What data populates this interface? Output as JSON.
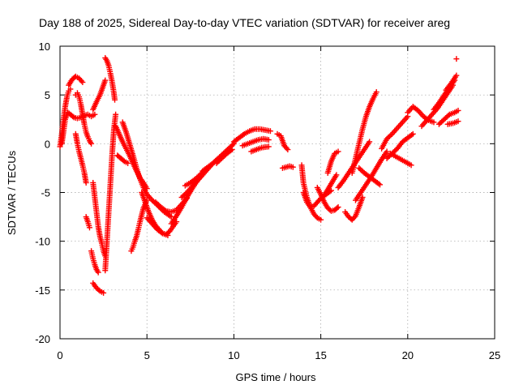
{
  "chart_data": {
    "type": "scatter",
    "title": "Day 188 of 2025, Sidereal Day-to-day VTEC variation (SDTVAR) for receiver areg",
    "xlabel": "GPS time / hours",
    "ylabel": "SDTVAR / TECUs",
    "xlim": [
      0,
      25
    ],
    "ylim": [
      -20,
      10
    ],
    "xticks": [
      "0",
      "5",
      "10",
      "15",
      "20",
      "25"
    ],
    "yticks": [
      "10",
      "5",
      "0",
      "-5",
      "-10",
      "-15",
      "-20"
    ],
    "grid": true,
    "marker": "+",
    "color": "#ff0000",
    "series": [
      {
        "x": [
          0.0,
          0.1,
          0.2,
          0.3,
          0.4,
          0.5,
          0.6
        ],
        "y": [
          -0.3,
          1.0,
          2.5,
          3.8,
          4.8,
          5.4,
          5.6
        ]
      },
      {
        "x": [
          0.1,
          0.2,
          0.3,
          0.45,
          0.6,
          0.8,
          1.0,
          1.2,
          1.4,
          1.6,
          1.8,
          2.0
        ],
        "y": [
          0.0,
          1.2,
          2.5,
          3.2,
          3.0,
          2.7,
          2.6,
          2.7,
          2.9,
          3.0,
          2.8,
          3.0
        ]
      },
      {
        "x": [
          0.5,
          0.7,
          0.9,
          1.1,
          1.3
        ],
        "y": [
          6.0,
          6.6,
          6.9,
          6.7,
          6.3
        ]
      },
      {
        "x": [
          0.9,
          1.0,
          1.1,
          1.2,
          1.3,
          1.4,
          1.5,
          1.6,
          1.7,
          1.8
        ],
        "y": [
          5.0,
          5.2,
          4.8,
          4.0,
          3.0,
          2.0,
          1.2,
          0.7,
          0.3,
          0.0
        ]
      },
      {
        "x": [
          0.9,
          1.0,
          1.1,
          1.2,
          1.3,
          1.4,
          1.5
        ],
        "y": [
          1.0,
          0.0,
          -0.8,
          -1.5,
          -2.2,
          -3.0,
          -4.0
        ]
      },
      {
        "x": [
          1.5,
          1.6,
          1.7
        ],
        "y": [
          -7.5,
          -8.0,
          -8.6
        ]
      },
      {
        "x": [
          1.9,
          2.1,
          2.3,
          2.5,
          2.6
        ],
        "y": [
          3.5,
          4.3,
          5.0,
          6.0,
          6.5
        ]
      },
      {
        "x": [
          1.9,
          2.0,
          2.1,
          2.2,
          2.3,
          2.4,
          2.5,
          2.6
        ],
        "y": [
          -4.0,
          -5.5,
          -7.0,
          -8.5,
          -9.5,
          -10.2,
          -11.0,
          -11.5
        ]
      },
      {
        "x": [
          1.8,
          1.9,
          2.0,
          2.1,
          2.2
        ],
        "y": [
          -11.0,
          -11.8,
          -12.4,
          -12.9,
          -13.2
        ]
      },
      {
        "x": [
          1.9,
          2.1,
          2.3,
          2.5
        ],
        "y": [
          -14.3,
          -14.8,
          -15.1,
          -15.3
        ]
      },
      {
        "x": [
          2.6,
          2.7,
          2.8,
          2.9,
          3.0,
          3.1,
          3.2
        ],
        "y": [
          -13.0,
          -10.0,
          -7.0,
          -4.0,
          -1.0,
          1.5,
          3.0
        ]
      },
      {
        "x": [
          2.6,
          2.7,
          2.8,
          2.9,
          3.0,
          3.1,
          3.15
        ],
        "y": [
          8.8,
          8.5,
          8.0,
          7.2,
          6.3,
          5.2,
          4.5
        ]
      },
      {
        "x": [
          3.2,
          3.4,
          3.6,
          3.8,
          4.0,
          4.2,
          4.4,
          4.6,
          4.8,
          5.0
        ],
        "y": [
          1.8,
          1.0,
          0.2,
          -0.5,
          -1.2,
          -2.0,
          -2.8,
          -3.5,
          -4.0,
          -4.6
        ]
      },
      {
        "x": [
          3.3,
          3.5,
          3.7,
          3.9
        ],
        "y": [
          -1.2,
          -1.5,
          -1.8,
          -2.0
        ]
      },
      {
        "x": [
          3.6,
          3.8,
          4.0,
          4.2,
          4.4,
          4.6,
          4.8,
          5.0,
          5.3,
          5.6,
          6.0,
          6.4
        ],
        "y": [
          2.2,
          1.2,
          0.0,
          -1.2,
          -2.5,
          -3.6,
          -4.5,
          -5.2,
          -5.8,
          -6.3,
          -7.0,
          -7.5
        ]
      },
      {
        "x": [
          4.1,
          4.2,
          4.3,
          4.4,
          4.5,
          4.6,
          4.8,
          5.0
        ],
        "y": [
          -11.0,
          -10.6,
          -10.0,
          -9.5,
          -8.8,
          -8.0,
          -6.6,
          -5.8
        ]
      },
      {
        "x": [
          4.7,
          4.9,
          5.1,
          5.3,
          5.5,
          5.7,
          5.9,
          6.1,
          6.3,
          6.5,
          6.7
        ],
        "y": [
          -5.0,
          -6.0,
          -7.0,
          -7.8,
          -8.4,
          -8.8,
          -9.2,
          -9.3,
          -9.0,
          -8.5,
          -8.0
        ]
      },
      {
        "x": [
          5.0,
          5.3,
          5.6,
          5.9,
          6.2
        ],
        "y": [
          -7.6,
          -8.2,
          -8.8,
          -9.2,
          -9.4
        ]
      },
      {
        "x": [
          5.5,
          5.8,
          6.1,
          6.4,
          6.7,
          7.0,
          7.3
        ],
        "y": [
          -6.0,
          -6.5,
          -6.9,
          -7.0,
          -6.8,
          -6.2,
          -5.6
        ]
      },
      {
        "x": [
          6.4,
          6.7,
          7.0,
          7.3,
          7.6,
          7.9,
          8.2
        ],
        "y": [
          -8.2,
          -7.4,
          -6.5,
          -5.5,
          -4.6,
          -3.8,
          -3.2
        ]
      },
      {
        "x": [
          7.0,
          7.3,
          7.6,
          7.9,
          8.2,
          8.5,
          8.8,
          9.1,
          9.4,
          9.7,
          10.0
        ],
        "y": [
          -5.5,
          -5.0,
          -4.4,
          -3.8,
          -3.2,
          -2.6,
          -2.0,
          -1.5,
          -1.0,
          -0.5,
          0.0
        ]
      },
      {
        "x": [
          7.2,
          7.5,
          7.8,
          8.1,
          8.4
        ],
        "y": [
          -4.3,
          -4.0,
          -3.6,
          -3.1,
          -2.6
        ]
      },
      {
        "x": [
          8.2,
          8.5,
          8.8,
          9.0
        ],
        "y": [
          -2.8,
          -2.4,
          -2.0,
          -1.7
        ]
      },
      {
        "x": [
          9.0,
          9.3,
          9.6,
          9.9
        ],
        "y": [
          -2.0,
          -1.5,
          -1.0,
          -0.6
        ]
      },
      {
        "x": [
          10.0,
          10.3,
          10.6,
          10.9,
          11.2,
          11.5,
          11.8,
          12.1
        ],
        "y": [
          0.2,
          0.6,
          1.0,
          1.3,
          1.5,
          1.5,
          1.4,
          1.3
        ]
      },
      {
        "x": [
          10.5,
          10.8,
          11.1,
          11.4,
          11.7,
          12.0
        ],
        "y": [
          -0.2,
          0.0,
          0.2,
          0.4,
          0.5,
          0.4
        ]
      },
      {
        "x": [
          11.0,
          11.3,
          11.6,
          12.0
        ],
        "y": [
          -0.8,
          -0.6,
          -0.4,
          -0.3
        ]
      },
      {
        "x": [
          12.5,
          12.7,
          12.9,
          13.1
        ],
        "y": [
          1.0,
          0.8,
          -0.2,
          -0.6
        ]
      },
      {
        "x": [
          12.8,
          13.0,
          13.2,
          13.4
        ],
        "y": [
          -2.5,
          -2.4,
          -2.3,
          -2.4
        ]
      },
      {
        "x": [
          13.9,
          14.0,
          14.2,
          14.4,
          14.6,
          14.8,
          15.0
        ],
        "y": [
          -2.2,
          -4.0,
          -5.5,
          -6.5,
          -7.2,
          -7.6,
          -7.8
        ]
      },
      {
        "x": [
          14.0,
          14.2,
          14.4,
          14.6,
          14.8,
          15.0,
          15.3,
          15.6
        ],
        "y": [
          -5.0,
          -6.0,
          -6.5,
          -6.4,
          -6.0,
          -5.6,
          -5.2,
          -4.8
        ]
      },
      {
        "x": [
          14.8,
          15.0,
          15.2,
          15.4,
          15.6,
          15.8,
          16.0
        ],
        "y": [
          -4.5,
          -5.2,
          -6.0,
          -6.6,
          -6.9,
          -6.8,
          -6.5
        ]
      },
      {
        "x": [
          15.1,
          15.3,
          15.5,
          15.7,
          15.9
        ],
        "y": [
          -5.5,
          -5.0,
          -4.4,
          -3.8,
          -3.2
        ]
      },
      {
        "x": [
          15.4,
          15.6,
          15.8,
          16.0
        ],
        "y": [
          -3.0,
          -1.8,
          -1.0,
          -0.8
        ]
      },
      {
        "x": [
          16.0,
          16.3,
          16.6,
          16.9,
          17.2,
          17.5,
          17.8
        ],
        "y": [
          -4.5,
          -3.8,
          -3.0,
          -2.2,
          -1.4,
          -0.6,
          0.2
        ]
      },
      {
        "x": [
          16.4,
          16.6,
          16.8,
          17.0,
          17.2,
          17.4
        ],
        "y": [
          -7.0,
          -7.5,
          -7.8,
          -7.4,
          -6.5,
          -5.5
        ]
      },
      {
        "x": [
          16.8,
          17.0,
          17.2,
          17.4,
          17.6,
          17.8,
          18.0,
          18.2
        ],
        "y": [
          -3.0,
          -1.5,
          0.0,
          1.5,
          2.8,
          3.8,
          4.6,
          5.3
        ]
      },
      {
        "x": [
          17.2,
          17.5,
          17.8,
          18.1,
          18.4
        ],
        "y": [
          -2.5,
          -3.0,
          -3.4,
          -3.8,
          -4.2
        ]
      },
      {
        "x": [
          17.0,
          17.3,
          17.6,
          17.9,
          18.2,
          18.5,
          18.8
        ],
        "y": [
          -5.8,
          -5.0,
          -4.2,
          -3.4,
          -2.5,
          -1.6,
          -0.8
        ]
      },
      {
        "x": [
          18.5,
          18.8,
          19.1,
          19.4,
          19.7,
          20.0
        ],
        "y": [
          -0.5,
          0.5,
          1.0,
          1.6,
          2.2,
          2.8
        ]
      },
      {
        "x": [
          18.8,
          19.1,
          19.4,
          19.7,
          20.0,
          20.3
        ],
        "y": [
          -1.5,
          -1.0,
          -0.5,
          0.2,
          0.6,
          1.0
        ]
      },
      {
        "x": [
          19.0,
          19.3,
          19.6,
          19.9,
          20.2
        ],
        "y": [
          -1.0,
          -1.3,
          -1.6,
          -1.9,
          -2.2
        ]
      },
      {
        "x": [
          20.0,
          20.3,
          20.6,
          20.9,
          21.2,
          21.5
        ],
        "y": [
          3.2,
          3.8,
          3.4,
          2.8,
          2.4,
          2.2
        ]
      },
      {
        "x": [
          20.8,
          21.1,
          21.4,
          21.7,
          22.0,
          22.3,
          22.6
        ],
        "y": [
          1.8,
          2.4,
          3.0,
          3.6,
          4.4,
          5.2,
          6.0
        ]
      },
      {
        "x": [
          21.5,
          21.8,
          22.1,
          22.4,
          22.7
        ],
        "y": [
          3.5,
          4.2,
          5.0,
          5.8,
          6.5
        ]
      },
      {
        "x": [
          21.8,
          22.1,
          22.4,
          22.7,
          22.9
        ],
        "y": [
          2.0,
          2.5,
          3.0,
          3.2,
          3.4
        ]
      },
      {
        "x": [
          22.2,
          22.5,
          22.8
        ],
        "y": [
          5.5,
          6.2,
          7.0
        ]
      },
      {
        "x": [
          22.3,
          22.6,
          22.9
        ],
        "y": [
          2.0,
          2.1,
          2.3
        ]
      },
      {
        "x": [
          22.8
        ],
        "y": [
          8.7
        ]
      }
    ]
  }
}
